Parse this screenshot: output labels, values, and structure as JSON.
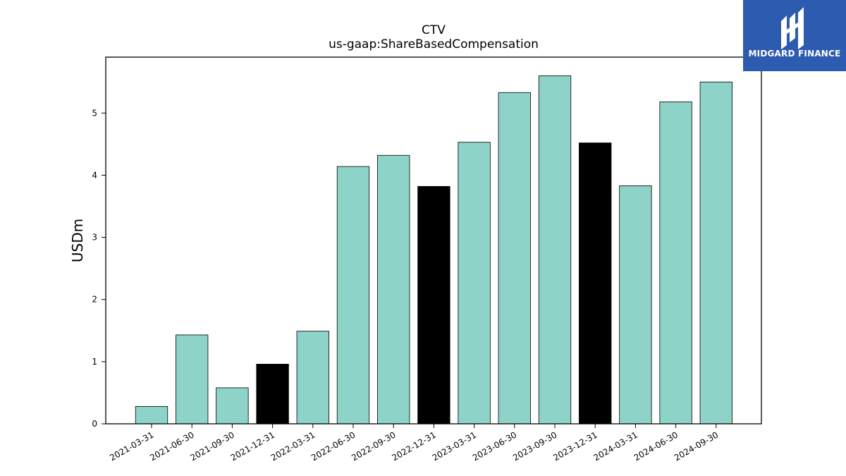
{
  "chart_data": {
    "type": "bar",
    "title": "CTV",
    "subtitle": "us-gaap:ShareBasedCompensation",
    "xlabel": "",
    "ylabel": "USDm",
    "categories": [
      "2021-03-31",
      "2021-06-30",
      "2021-09-30",
      "2021-12-31",
      "2022-03-31",
      "2022-06-30",
      "2022-09-30",
      "2022-12-31",
      "2023-03-31",
      "2023-06-30",
      "2023-09-30",
      "2023-12-31",
      "2024-03-31",
      "2024-06-30",
      "2024-09-30"
    ],
    "values": [
      0.28,
      1.43,
      0.58,
      0.96,
      1.49,
      4.14,
      4.32,
      3.82,
      4.53,
      5.33,
      5.6,
      4.52,
      3.83,
      5.18,
      5.5
    ],
    "highlight": [
      false,
      false,
      false,
      true,
      false,
      false,
      false,
      true,
      false,
      false,
      false,
      true,
      false,
      false,
      false
    ],
    "bar_color": "#8dd3c7",
    "highlight_color": "#000000",
    "ylim": [
      0,
      5.9
    ],
    "yticks": [
      0,
      1,
      2,
      3,
      4,
      5
    ],
    "grid": false
  },
  "logo": {
    "text": "MIDGARD FINANCE",
    "color": "#2d5bb0"
  }
}
